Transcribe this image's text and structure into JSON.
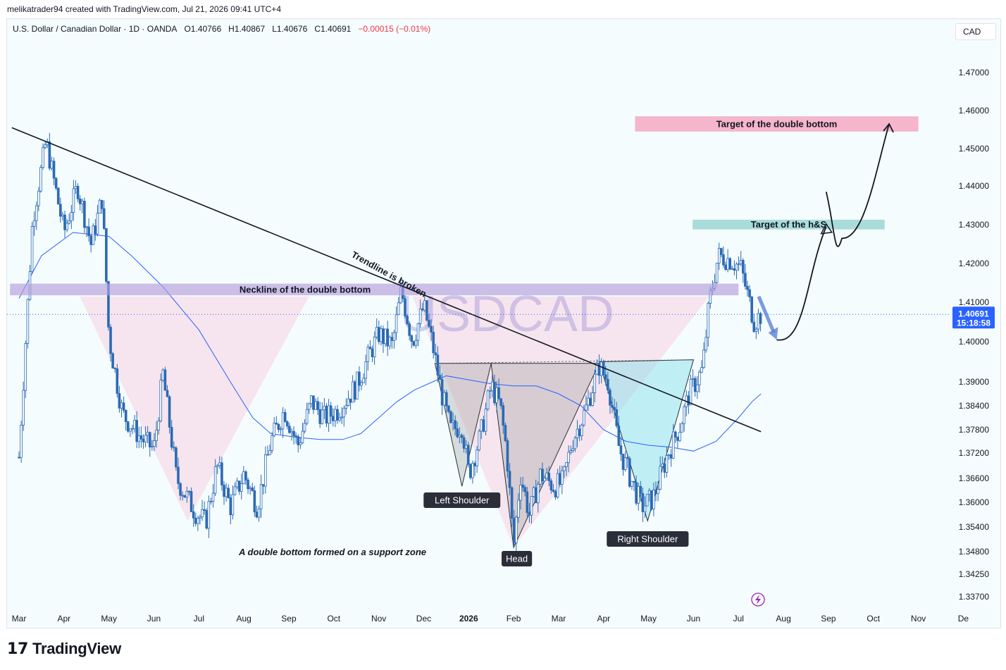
{
  "header": {
    "publisher_line": "melikatrader94 created with TradingView.com, Jul 21, 2026 09:41 UTC+4"
  },
  "legend": {
    "symbol_desc": "U.S. Dollar / Canadian Dollar · 1D · OANDA",
    "open": "O1.40766",
    "high": "H1.40867",
    "low": "L1.40676",
    "close": "C1.40691",
    "change": "−0.00015 (−0.01%)"
  },
  "currency_button": "CAD",
  "watermark": "USDCAD",
  "footer": {
    "brand": "TradingView"
  },
  "colors": {
    "candle": "#2b6ab5",
    "ma_line": "#2962ff",
    "neckline_zone": "#b39ddb",
    "hs_target_zone": "#80cbc4",
    "db_target_zone": "#f48fb1",
    "double_bottom_fill": "#f8bbd0",
    "hs_fill": "#9e9e9e",
    "right_shoulder_fill": "#80deea",
    "price_label_bg": "#2962ff",
    "projection_arrow": "#5b7fd9"
  },
  "chart_data": {
    "type": "candlestick",
    "symbol": "USDCAD",
    "timeframe": "1D",
    "x_tick_labels": [
      "Mar",
      "Apr",
      "May",
      "Jun",
      "Jul",
      "Aug",
      "Sep",
      "Oct",
      "Nov",
      "Dec",
      "2026",
      "Feb",
      "Mar",
      "Apr",
      "May",
      "Jun",
      "Jul",
      "Aug",
      "Sep",
      "Oct",
      "Nov",
      "De"
    ],
    "y_tick_labels": [
      "1.47000",
      "1.46000",
      "1.45000",
      "1.44000",
      "1.43000",
      "1.42000",
      "1.41000",
      "1.40000",
      "1.39000",
      "1.38400",
      "1.37800",
      "1.37200",
      "1.36600",
      "1.36000",
      "1.35400",
      "1.34800",
      "1.34250",
      "1.33700"
    ],
    "last_price": "1.40691",
    "countdown": "15:18:58",
    "price_path": [
      {
        "x": 0.0,
        "y": 1.371
      },
      {
        "x": 0.3,
        "y": 1.431
      },
      {
        "x": 0.6,
        "y": 1.452
      },
      {
        "x": 1.0,
        "y": 1.428
      },
      {
        "x": 1.3,
        "y": 1.44
      },
      {
        "x": 1.6,
        "y": 1.425
      },
      {
        "x": 1.85,
        "y": 1.437
      },
      {
        "x": 2.0,
        "y": 1.401
      },
      {
        "x": 2.3,
        "y": 1.382
      },
      {
        "x": 2.7,
        "y": 1.376
      },
      {
        "x": 3.0,
        "y": 1.373
      },
      {
        "x": 3.2,
        "y": 1.392
      },
      {
        "x": 3.5,
        "y": 1.366
      },
      {
        "x": 3.9,
        "y": 1.358
      },
      {
        "x": 4.15,
        "y": 1.355
      },
      {
        "x": 4.4,
        "y": 1.369
      },
      {
        "x": 4.7,
        "y": 1.359
      },
      {
        "x": 5.0,
        "y": 1.367
      },
      {
        "x": 5.3,
        "y": 1.359
      },
      {
        "x": 5.6,
        "y": 1.375
      },
      {
        "x": 5.9,
        "y": 1.383
      },
      {
        "x": 6.2,
        "y": 1.374
      },
      {
        "x": 6.5,
        "y": 1.385
      },
      {
        "x": 6.8,
        "y": 1.381
      },
      {
        "x": 7.1,
        "y": 1.383
      },
      {
        "x": 7.5,
        "y": 1.389
      },
      {
        "x": 7.8,
        "y": 1.397
      },
      {
        "x": 8.0,
        "y": 1.402
      },
      {
        "x": 8.3,
        "y": 1.399
      },
      {
        "x": 8.5,
        "y": 1.413
      },
      {
        "x": 8.75,
        "y": 1.4
      },
      {
        "x": 9.0,
        "y": 1.409
      },
      {
        "x": 9.2,
        "y": 1.399
      },
      {
        "x": 9.4,
        "y": 1.387
      },
      {
        "x": 9.6,
        "y": 1.378
      },
      {
        "x": 9.85,
        "y": 1.379
      },
      {
        "x": 10.0,
        "y": 1.367
      },
      {
        "x": 10.25,
        "y": 1.376
      },
      {
        "x": 10.5,
        "y": 1.389
      },
      {
        "x": 10.7,
        "y": 1.384
      },
      {
        "x": 10.85,
        "y": 1.372
      },
      {
        "x": 11.0,
        "y": 1.349
      },
      {
        "x": 11.15,
        "y": 1.367
      },
      {
        "x": 11.35,
        "y": 1.357
      },
      {
        "x": 11.6,
        "y": 1.367
      },
      {
        "x": 11.9,
        "y": 1.364
      },
      {
        "x": 12.1,
        "y": 1.365
      },
      {
        "x": 12.3,
        "y": 1.375
      },
      {
        "x": 12.6,
        "y": 1.383
      },
      {
        "x": 12.9,
        "y": 1.394
      },
      {
        "x": 13.1,
        "y": 1.39
      },
      {
        "x": 13.35,
        "y": 1.373
      },
      {
        "x": 13.6,
        "y": 1.366
      },
      {
        "x": 13.85,
        "y": 1.359
      },
      {
        "x": 14.1,
        "y": 1.361
      },
      {
        "x": 14.4,
        "y": 1.371
      },
      {
        "x": 14.7,
        "y": 1.379
      },
      {
        "x": 14.9,
        "y": 1.387
      },
      {
        "x": 15.2,
        "y": 1.393
      },
      {
        "x": 15.35,
        "y": 1.41
      },
      {
        "x": 15.55,
        "y": 1.422
      },
      {
        "x": 15.8,
        "y": 1.421
      },
      {
        "x": 16.05,
        "y": 1.419
      },
      {
        "x": 16.2,
        "y": 1.412
      },
      {
        "x": 16.35,
        "y": 1.405
      },
      {
        "x": 16.5,
        "y": 1.4069
      }
    ],
    "moving_average": [
      {
        "x": 0.0,
        "y": 1.411
      },
      {
        "x": 0.5,
        "y": 1.422
      },
      {
        "x": 1.2,
        "y": 1.428
      },
      {
        "x": 2.0,
        "y": 1.427
      },
      {
        "x": 2.5,
        "y": 1.422
      },
      {
        "x": 3.2,
        "y": 1.414
      },
      {
        "x": 4.0,
        "y": 1.403
      },
      {
        "x": 4.7,
        "y": 1.39
      },
      {
        "x": 5.2,
        "y": 1.381
      },
      {
        "x": 5.6,
        "y": 1.377
      },
      {
        "x": 6.2,
        "y": 1.376
      },
      {
        "x": 6.7,
        "y": 1.3755
      },
      {
        "x": 7.2,
        "y": 1.3755
      },
      {
        "x": 7.6,
        "y": 1.377
      },
      {
        "x": 8.0,
        "y": 1.381
      },
      {
        "x": 8.4,
        "y": 1.385
      },
      {
        "x": 8.8,
        "y": 1.388
      },
      {
        "x": 9.2,
        "y": 1.39
      },
      {
        "x": 9.5,
        "y": 1.3915
      },
      {
        "x": 10.0,
        "y": 1.3905
      },
      {
        "x": 10.5,
        "y": 1.3895
      },
      {
        "x": 11.0,
        "y": 1.389
      },
      {
        "x": 11.5,
        "y": 1.389
      },
      {
        "x": 12.0,
        "y": 1.387
      },
      {
        "x": 12.5,
        "y": 1.384
      },
      {
        "x": 13.0,
        "y": 1.378
      },
      {
        "x": 13.5,
        "y": 1.375
      },
      {
        "x": 14.0,
        "y": 1.374
      },
      {
        "x": 14.5,
        "y": 1.3735
      },
      {
        "x": 15.0,
        "y": 1.3725
      },
      {
        "x": 15.5,
        "y": 1.375
      },
      {
        "x": 16.0,
        "y": 1.381
      },
      {
        "x": 16.3,
        "y": 1.385
      },
      {
        "x": 16.5,
        "y": 1.387
      }
    ],
    "annotations": {
      "trendline": {
        "x1": -0.16,
        "y1": 1.4555,
        "x2": 16.5,
        "y2": 1.3775,
        "label": "Trendline is broken"
      },
      "neckline_zone": {
        "x1": -0.2,
        "x2": 16.0,
        "y_top": 1.4148,
        "y_bottom": 1.4118,
        "label": "Neckline of the double bottom"
      },
      "hs_target_zone": {
        "x1": 14.98,
        "x2": 19.25,
        "y_top": 1.4313,
        "y_bottom": 1.4288,
        "label": "Target of the h&S"
      },
      "db_target_zone": {
        "x1": 13.7,
        "x2": 20.0,
        "y_top": 1.4585,
        "y_bottom": 1.4545,
        "label": "Target of the double bottom"
      },
      "double_bottom_triangles": [
        {
          "points": [
            [
              1.35,
              1.4115
            ],
            [
              3.75,
              1.3555
            ],
            [
              6.45,
              1.4115
            ]
          ]
        },
        {
          "points": [
            [
              8.75,
              1.4115
            ],
            [
              11.0,
              1.349
            ],
            [
              15.35,
              1.4115
            ]
          ]
        }
      ],
      "head_shoulders": {
        "neckline_y": 1.3946,
        "left_shoulder": {
          "points": [
            [
              9.25,
              1.3946
            ],
            [
              9.85,
              1.364
            ],
            [
              10.5,
              1.3946
            ]
          ],
          "label": "Left Shoulder"
        },
        "head": {
          "points": [
            [
              10.5,
              1.3946
            ],
            [
              11.0,
              1.349
            ],
            [
              12.9,
              1.3946
            ]
          ],
          "label": "Head"
        },
        "right_shoulder": {
          "points": [
            [
              12.9,
              1.395
            ],
            [
              13.98,
              1.3555
            ],
            [
              15.0,
              1.3955
            ]
          ],
          "label": "Right Shoulder"
        }
      },
      "projection_arrow": {
        "from": [
          16.45,
          1.4115
        ],
        "to": [
          16.85,
          1.4005
        ]
      },
      "projected_path": [
        [
          16.85,
          1.4005
        ],
        [
          17.4,
          1.403
        ],
        [
          17.9,
          1.4245
        ],
        [
          17.95,
          1.4295
        ],
        [
          18.3,
          1.4265
        ],
        [
          18.8,
          1.428
        ],
        [
          19.2,
          1.4495
        ],
        [
          19.35,
          1.4565
        ]
      ],
      "projected_path_entry": [
        [
          17.95,
          1.4385
        ],
        [
          18.1,
          1.4295
        ]
      ],
      "bottom_caption": "A double bottom formed on a support zone"
    }
  }
}
